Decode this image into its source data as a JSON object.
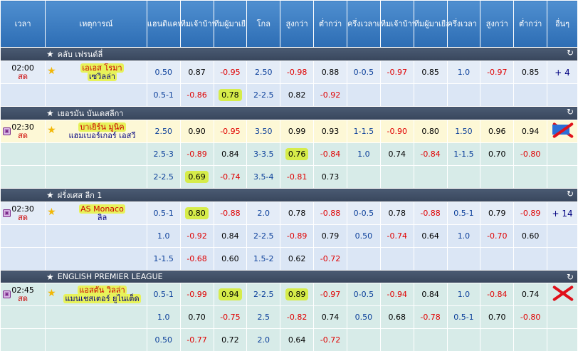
{
  "headers": {
    "time": "เวลา",
    "event": "เหตุการณ์",
    "handicap": "แฮนดิแคพ",
    "home": "ทีมเจ้าบ้าน",
    "away": "ทีมผู้มาเยือน",
    "goal": "โกล",
    "over": "สูงกว่า",
    "under": "ต่ำกว่า",
    "h1_handicap": "ครึ่งเวลาแฮนดิแคพ",
    "h1_home": "ทีมเจ้าบ้าน",
    "h1_away": "ทีมผู้มาเยือน",
    "h1_goal": "ครึ่งเวลา G",
    "h1_over": "สูงกว่า",
    "h1_under": "ต่ำกว่า",
    "more": "อื่นๆ"
  },
  "leagues": [
    {
      "name": "คลับ เฟรนด์ลี่",
      "matches": [
        {
          "time": "02:00",
          "status": "สด",
          "home": "เอเอส โรมา",
          "away": "เซวิลล่า",
          "more": "+ 4",
          "rows": [
            [
              "0.50",
              "0.87",
              "-0.95",
              "2.50",
              "-0.98",
              "0.88",
              "0-0.5",
              "-0.97",
              "0.85",
              "1.0",
              "-0.97",
              "0.85"
            ],
            [
              "0.5-1",
              "-0.86",
              "0.78",
              "2-2.5",
              "0.82",
              "-0.92",
              "",
              "",
              "",
              "",
              "",
              ""
            ]
          ]
        }
      ]
    },
    {
      "name": "เยอรมัน บันเดสลีกา",
      "matches": [
        {
          "time": "02:30",
          "status": "สด",
          "home": "บาเยิร์น มูนิค",
          "away": "แฮมเบอร์เกอร์ เอสวี",
          "more": "",
          "rows": [
            [
              "2.50",
              "0.90",
              "-0.95",
              "3.50",
              "0.99",
              "0.93",
              "1-1.5",
              "-0.90",
              "0.80",
              "1.50",
              "0.96",
              "0.94"
            ],
            [
              "2.5-3",
              "-0.89",
              "0.84",
              "3-3.5",
              "0.76",
              "-0.84",
              "1.0",
              "0.74",
              "-0.84",
              "1-1.5",
              "0.70",
              "-0.80"
            ],
            [
              "2-2.5",
              "0.69",
              "-0.74",
              "3.5-4",
              "-0.81",
              "0.73",
              "",
              "",
              "",
              "",
              "",
              ""
            ]
          ]
        }
      ]
    },
    {
      "name": "ฝรั่งเศส ลีก 1",
      "matches": [
        {
          "time": "02:30",
          "status": "สด",
          "home": "AS Monaco",
          "away": "ลิล",
          "more": "+ 14",
          "rows": [
            [
              "0.5-1",
              "0.80",
              "-0.88",
              "2.0",
              "0.78",
              "-0.88",
              "0-0.5",
              "0.78",
              "-0.88",
              "0.5-1",
              "0.79",
              "-0.89"
            ],
            [
              "1.0",
              "-0.92",
              "0.84",
              "2-2.5",
              "-0.89",
              "0.79",
              "0.50",
              "-0.74",
              "0.64",
              "1.0",
              "-0.70",
              "0.60"
            ],
            [
              "1-1.5",
              "-0.68",
              "0.60",
              "1.5-2",
              "0.62",
              "-0.72",
              "",
              "",
              "",
              "",
              "",
              ""
            ]
          ]
        }
      ]
    },
    {
      "name": "ENGLISH PREMIER LEAGUE",
      "matches": [
        {
          "time": "02:45",
          "status": "สด",
          "home": "แอสตัน วิลล่า",
          "away": "แมนเชสเตอร์ ยูไนเต็ด",
          "more": "",
          "rows": [
            [
              "0.5-1",
              "-0.99",
              "0.94",
              "2-2.5",
              "0.89",
              "-0.97",
              "0-0.5",
              "-0.94",
              "0.84",
              "1.0",
              "-0.84",
              "0.74"
            ],
            [
              "1.0",
              "0.70",
              "-0.75",
              "2.5",
              "-0.82",
              "0.74",
              "0.50",
              "0.68",
              "-0.78",
              "0.5-1",
              "0.70",
              "-0.80"
            ],
            [
              "0.50",
              "-0.77",
              "0.72",
              "2.0",
              "0.64",
              "-0.72",
              "",
              "",
              "",
              "",
              "",
              ""
            ]
          ]
        }
      ]
    }
  ],
  "icons": {
    "fav": "star-icon",
    "refresh": "refresh-icon",
    "tv": "tv-icon",
    "cross": "red-cross-mark"
  },
  "colors": {
    "header": "#2d6db4",
    "league_bar": "#3e4d64",
    "row": "#e4ecf7",
    "row_alt": "#d7ebe8",
    "highlight": "#d6ec4a",
    "negative": "#e00000"
  }
}
